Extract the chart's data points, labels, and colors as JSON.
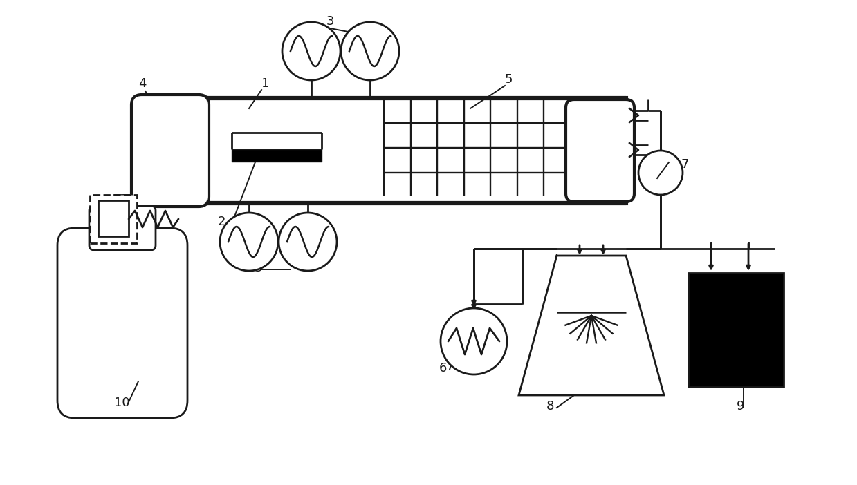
{
  "bg": "#ffffff",
  "lc": "#1a1a1a",
  "lw": 2.0,
  "fw": 12.39,
  "fh": 7.02,
  "xlim": [
    0,
    12.39
  ],
  "ylim": [
    0,
    7.02
  ]
}
